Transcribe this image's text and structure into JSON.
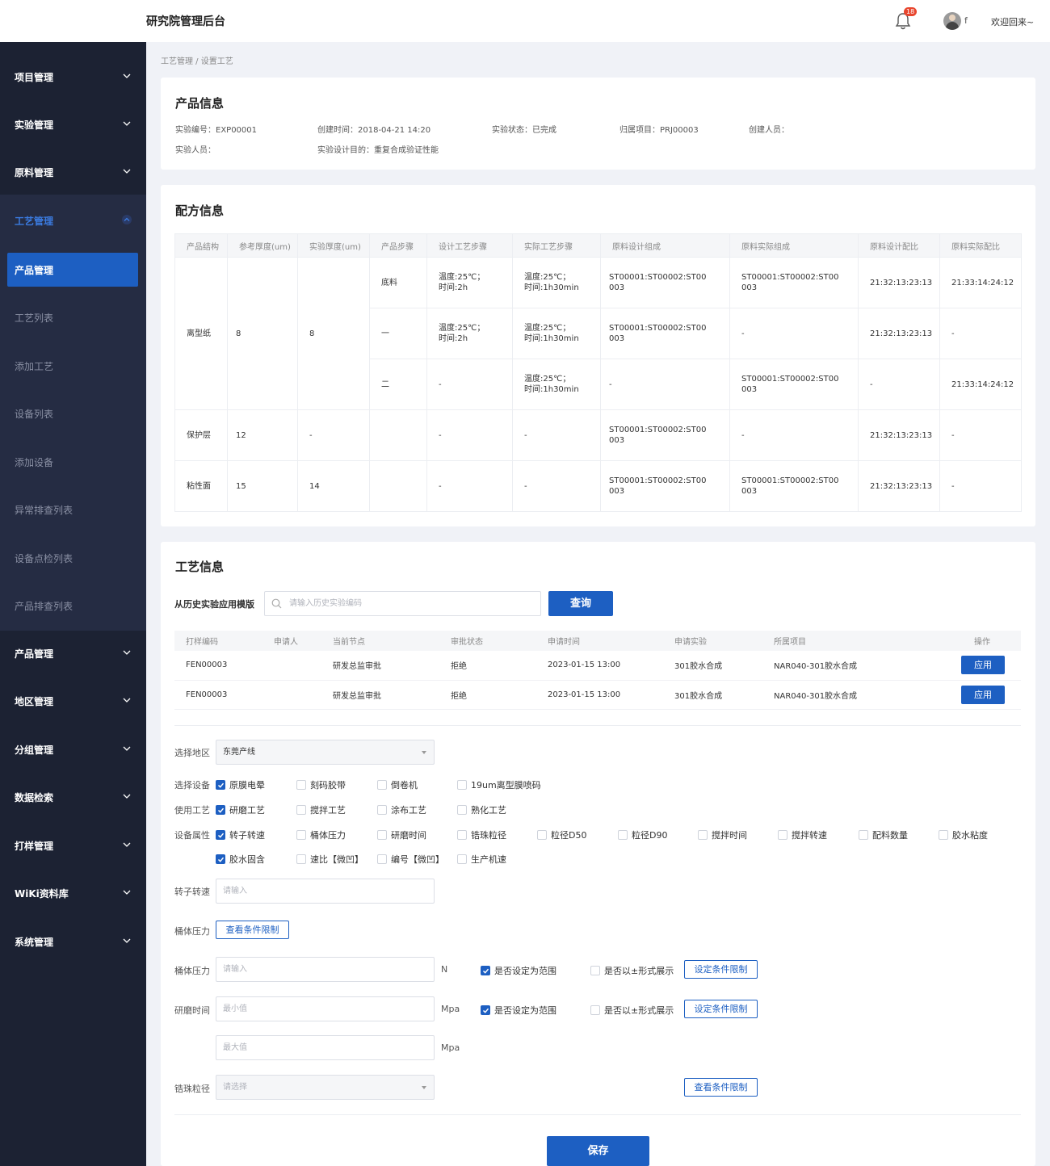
{
  "header": {
    "app_title": "研究院管理后台",
    "notification_count": "18",
    "user_name": "f",
    "welcome": "欢迎回来~"
  },
  "sidebar": {
    "top_items": [
      {
        "label": "项目管理"
      },
      {
        "label": "实验管理"
      },
      {
        "label": "原料管理"
      },
      {
        "label": "工艺管理"
      }
    ],
    "sub_items": [
      {
        "label": "产品管理"
      },
      {
        "label": "工艺列表"
      },
      {
        "label": "添加工艺"
      },
      {
        "label": "设备列表"
      },
      {
        "label": "添加设备"
      },
      {
        "label": "异常排查列表"
      },
      {
        "label": "设备点检列表"
      },
      {
        "label": "产品排查列表"
      }
    ],
    "bottom_items": [
      {
        "label": "产品管理"
      },
      {
        "label": "地区管理"
      },
      {
        "label": "分组管理"
      },
      {
        "label": "数据检索"
      },
      {
        "label": "打样管理"
      },
      {
        "label": "WiKi资料库"
      },
      {
        "label": "系统管理"
      }
    ]
  },
  "breadcrumb": "工艺管理 / 设置工艺",
  "product_info": {
    "title": "产品信息",
    "fields": [
      "实验编号：EXP00001",
      "创建时间：2018-04-21 14:20",
      "实验状态：已完成",
      "归属项目：PRJ00003",
      "创建人员：",
      "实验人员：",
      "实验设计目的：重复合成验证性能"
    ]
  },
  "formula": {
    "title": "配方信息",
    "columns": [
      "产品结构",
      "参考厚度(um)",
      "实验厚度(um)",
      "产品步骤",
      "设计工艺步骤",
      "实际工艺步骤",
      "原料设计组成",
      "原料实际组成",
      "原料设计配比",
      "原料实际配比"
    ],
    "groups": [
      {
        "structure": "离型纸",
        "ref": "8",
        "exp": "8"
      },
      {
        "structure": "保护层",
        "ref": "12",
        "exp": "-"
      },
      {
        "structure": "粘性面",
        "ref": "15",
        "exp": "14"
      }
    ],
    "rows": [
      [
        "底料",
        "温度:25℃；\n时间:2h",
        "温度:25℃；\n时间:1h30min",
        "ST00001:ST00002:ST00\n003",
        "ST00001:ST00002:ST00\n003",
        "21:32:13:23:13",
        "21:33:14:24:12"
      ],
      [
        "一",
        "温度:25℃；\n时间:2h",
        "温度:25℃；\n时间:1h30min",
        "ST00001:ST00002:ST00\n003",
        "-",
        "21:32:13:23:13",
        "-"
      ],
      [
        "二",
        "-",
        "温度:25℃；\n时间:1h30min",
        "-",
        "ST00001:ST00002:ST00\n003",
        "-",
        "21:33:14:24:12"
      ],
      [
        "",
        "-",
        "-",
        "ST00001:ST00002:ST00\n003",
        "-",
        "21:32:13:23:13",
        "-"
      ],
      [
        "",
        "-",
        "-",
        "ST00001:ST00002:ST00\n003",
        "ST00001:ST00002:ST00\n003",
        "21:32:13:23:13",
        "-"
      ]
    ]
  },
  "process": {
    "title": "工艺信息",
    "template_label": "从历史实验应用模版",
    "search_placeholder": "请输入历史实验编码",
    "query_label": "查询",
    "sample_columns": [
      "打样编码",
      "申请人",
      "当前节点",
      "审批状态",
      "申请时间",
      "申请实验",
      "所属项目",
      "操作"
    ],
    "sample_rows": [
      [
        "FEN00003",
        "",
        "研发总监审批",
        "拒绝",
        "2023-01-15 13:00",
        "301胶水合成",
        "NAR040-301胶水合成",
        "应用"
      ],
      [
        "FEN00003",
        "",
        "研发总监审批",
        "拒绝",
        "2023-01-15 13:00",
        "301胶水合成",
        "NAR040-301胶水合成",
        "应用"
      ]
    ],
    "region_label": "选择地区",
    "region_value": "东莞产线",
    "equipment_label": "选择设备",
    "equipment": [
      {
        "label": "原膜电晕",
        "checked": true
      },
      {
        "label": "刻码胶带",
        "checked": false
      },
      {
        "label": "倒卷机",
        "checked": false
      },
      {
        "label": "19um离型膜喷码",
        "checked": false
      }
    ],
    "craft_label": "使用工艺",
    "crafts": [
      {
        "label": "研磨工艺",
        "checked": true
      },
      {
        "label": "搅拌工艺",
        "checked": false
      },
      {
        "label": "涂布工艺",
        "checked": false
      },
      {
        "label": "熟化工艺",
        "checked": false
      }
    ],
    "attr_label": "设备属性",
    "attrs_row1": [
      {
        "label": "转子转速",
        "checked": true
      },
      {
        "label": "桶体压力",
        "checked": false
      },
      {
        "label": "研磨时间",
        "checked": false
      },
      {
        "label": "锆珠粒径",
        "checked": false
      },
      {
        "label": "粒径D50",
        "checked": false
      },
      {
        "label": "粒径D90",
        "checked": false
      },
      {
        "label": "搅拌时间",
        "checked": false
      },
      {
        "label": "搅拌转速",
        "checked": false
      },
      {
        "label": "配料数量",
        "checked": false
      },
      {
        "label": "胶水粘度",
        "checked": false
      }
    ],
    "attrs_row2": [
      {
        "label": "胶水固含",
        "checked": true
      },
      {
        "label": "速比【微凹】",
        "checked": false
      },
      {
        "label": "编号【微凹】",
        "checked": false
      },
      {
        "label": "生产机速",
        "checked": false
      }
    ],
    "rotor_label": "转子转速",
    "rotor_placeholder": "请输入",
    "pressure_label": "桶体压力",
    "view_limit_label": "查看条件限制",
    "pressure2_label": "桶体压力",
    "pressure2_placeholder": "请输入",
    "pressure2_unit": "N",
    "range_label": "是否设定为范围",
    "pm_label": "是否以±形式展示",
    "set_limit_label": "设定条件限制",
    "grind_label": "研磨时间",
    "min_placeholder": "最小值",
    "max_placeholder": "最大值",
    "grind_unit": "Mpa",
    "bead_label": "锆珠粒径",
    "bead_placeholder": "请选择",
    "save_label": "保存"
  },
  "colors": {
    "sidebar": "#1c2233",
    "accent": "#1d5fc2"
  }
}
